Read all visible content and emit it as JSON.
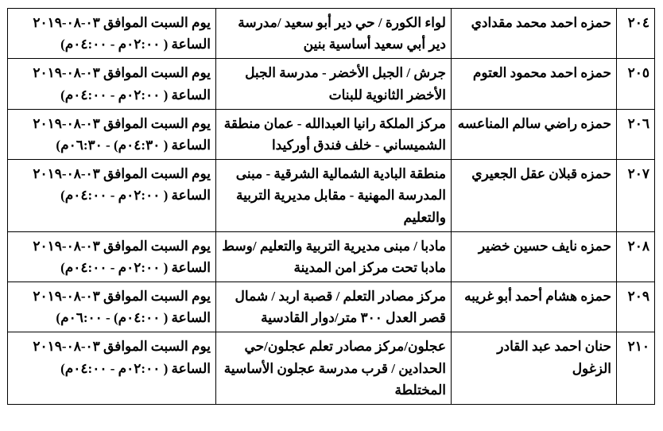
{
  "rows": [
    {
      "idx": "٢٠٤",
      "name": "حمزه احمد محمد مقدادي",
      "location": "لواء الكورة / حي دير أبو سعيد /مدرسة دير أبي سعيد أساسية بنين",
      "datetime": "يوم السبت الموافق ٠٣-٠٨-٢٠١٩ الساعة ( ٠٢:٠٠م - ٠٤:٠٠م)"
    },
    {
      "idx": "٢٠٥",
      "name": "حمزه احمد محمود العتوم",
      "location": "جرش / الجبل الأخضر  -  مدرسة الجبل الأخضر الثانوية للبنات",
      "datetime": "يوم السبت الموافق ٠٣-٠٨-٢٠١٩ الساعة ( ٠٢:٠٠م - ٠٤:٠٠م)"
    },
    {
      "idx": "٢٠٦",
      "name": "حمزه راضي سالم المناعسه",
      "location": "مركز الملكة رانيا العبدالله - عمان منطقة الشميساني - خلف فندق أوركيدا",
      "datetime": "يوم السبت الموافق ٠٣-٠٨-٢٠١٩ الساعة ( ٠٤:٣٠م) - ٠٦:٣٠م)"
    },
    {
      "idx": "٢٠٧",
      "name": "حمزه قبلان عقل الجعيري",
      "location": "منطقة البادية الشمالية الشرقية  -  مبنى المدرسة المهنية  -  مقابل مديرية التربية والتعليم",
      "datetime": "يوم السبت الموافق ٠٣-٠٨-٢٠١٩ الساعة ( ٠٢:٠٠م - ٠٤:٠٠م)"
    },
    {
      "idx": "٢٠٨",
      "name": "حمزه نايف حسين خضير",
      "location": "مادبا / مبنى مديرية التربية والتعليم /وسط مادبا تحت مركز امن المدينة",
      "datetime": "يوم السبت الموافق ٠٣-٠٨-٢٠١٩ الساعة ( ٠٢:٠٠م - ٠٤:٠٠م)"
    },
    {
      "idx": "٢٠٩",
      "name": "حمزه هشام أحمد أبو غريبه",
      "location": "مركز مصادر التعلم / قصبة  اربد /  شمال قصر العدل ٣٠٠ متر/دوار القادسية",
      "datetime": "يوم السبت الموافق ٠٣-٠٨-٢٠١٩ الساعة ( ٠٤:٠٠م) - ٠٦:٠٠م)"
    },
    {
      "idx": "٢١٠",
      "name": "حنان احمد عبد القادر الزغول",
      "location": "عجلون/مركز مصادر تعلم عجلون/حي الحدادين / قرب مدرسة عجلون الأساسية المختلطة",
      "datetime": "يوم السبت الموافق ٠٣-٠٨-٢٠١٩ الساعة ( ٠٢:٠٠م - ٠٤:٠٠م)"
    }
  ]
}
